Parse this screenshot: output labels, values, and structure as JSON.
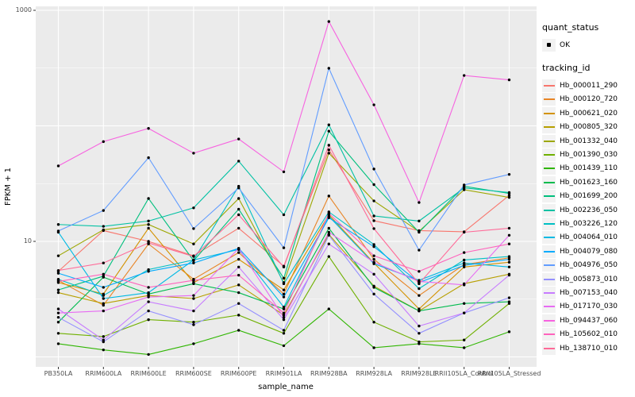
{
  "plot": {
    "y_axis": {
      "title": "FPKM + 1",
      "ticks": [
        {
          "label": "1000",
          "value": 1000
        },
        {
          "label": "10",
          "value": 10
        }
      ]
    },
    "x_axis": {
      "title": "sample_name"
    },
    "legend": {
      "quant_status_title": "quant_status",
      "ok_label": "OK",
      "tracking_id_title": "tracking_id"
    },
    "panel_background": "#EBEBEB",
    "gridline_color": "#FFFFFF",
    "tick_text_color": "#4D4D4D"
  },
  "chart_data": {
    "type": "line",
    "title": "",
    "xlabel": "sample_name",
    "ylabel": "FPKM + 1",
    "y_scale": "log10",
    "ylim": [
      1,
      1000
    ],
    "grid": true,
    "legend_position": "right",
    "point_marker": "black dot (quant_status = OK)",
    "categories": [
      "PB350LA",
      "RRIM600LA",
      "RRIM600LE",
      "RRIM600SE",
      "RRIM600PE",
      "RRIM901LA",
      "RRIM928BA",
      "RRIM928LA",
      "RRIM928LE",
      "RRII105LA_Control",
      "RRII105LA_Stressed"
    ],
    "series": [
      {
        "name": "Hb_000011_290",
        "color": "#F8766D",
        "values": [
          5.5,
          12.4,
          10.0,
          7.5,
          13.0,
          6.1,
          62,
          15.1,
          12.4,
          12.1,
          25.0
        ]
      },
      {
        "name": "Hb_000120_720",
        "color": "#E88526",
        "values": [
          4.6,
          2.8,
          9.5,
          4.7,
          8.0,
          3.5,
          24.7,
          7.0,
          3.4,
          6.3,
          7.2
        ]
      },
      {
        "name": "Hb_000621_020",
        "color": "#D39200",
        "values": [
          4.4,
          3.5,
          13.0,
          4.4,
          7.0,
          3.8,
          17.0,
          6.5,
          2.6,
          6.0,
          6.6
        ]
      },
      {
        "name": "Hb_000805_320",
        "color": "#B79F00",
        "values": [
          3.6,
          2.9,
          3.4,
          3.2,
          4.2,
          2.3,
          11.5,
          4.1,
          2.5,
          4.3,
          5.2
        ]
      },
      {
        "name": "Hb_001332_040",
        "color": "#9DA702",
        "values": [
          7.5,
          12.6,
          14.0,
          9.5,
          23.5,
          4.4,
          58,
          22.4,
          12.2,
          28.0,
          24.0
        ]
      },
      {
        "name": "Hb_001390_030",
        "color": "#6FB000",
        "values": [
          1.6,
          1.5,
          2.1,
          2.0,
          2.3,
          1.6,
          7.4,
          2.0,
          1.35,
          1.4,
          2.9
        ]
      },
      {
        "name": "Hb_001439_110",
        "color": "#2FB600",
        "values": [
          1.3,
          1.15,
          1.05,
          1.3,
          1.7,
          1.25,
          2.6,
          1.2,
          1.3,
          1.2,
          1.65
        ]
      },
      {
        "name": "Hb_001623_160",
        "color": "#00BB4E",
        "values": [
          2.0,
          4.9,
          3.5,
          4.3,
          3.6,
          2.6,
          13.0,
          4.0,
          2.5,
          2.9,
          3.0
        ]
      },
      {
        "name": "Hb_001699_200",
        "color": "#00BF7D",
        "values": [
          3.8,
          5.0,
          23.5,
          6.8,
          19.0,
          4.8,
          90,
          31.0,
          12.0,
          30.0,
          26.0
        ]
      },
      {
        "name": "Hb_002236_050",
        "color": "#00C1A3",
        "values": [
          14.0,
          13.5,
          15.0,
          19.5,
          49.5,
          17.0,
          102,
          16.6,
          15.0,
          29.0,
          26.5
        ]
      },
      {
        "name": "Hb_003226_120",
        "color": "#00BFC4",
        "values": [
          4.7,
          3.4,
          5.7,
          6.9,
          30.0,
          4.3,
          18.0,
          9.4,
          3.9,
          6.9,
          7.4
        ]
      },
      {
        "name": "Hb_004064_010",
        "color": "#00B9E3",
        "values": [
          12.0,
          3.2,
          3.6,
          6.9,
          8.5,
          2.7,
          16.5,
          6.4,
          4.6,
          6.5,
          6.0
        ]
      },
      {
        "name": "Hb_004079_080",
        "color": "#00ABFD",
        "values": [
          5.3,
          4.0,
          5.5,
          6.5,
          8.7,
          3.3,
          16.0,
          9.0,
          4.4,
          6.2,
          7.0
        ]
      },
      {
        "name": "Hb_004976_050",
        "color": "#619CFF",
        "values": [
          12.3,
          18.5,
          53.0,
          12.9,
          29.0,
          8.8,
          315,
          42.3,
          8.4,
          30.8,
          38.0
        ]
      },
      {
        "name": "Hb_005873_010",
        "color": "#9590FF",
        "values": [
          2.2,
          1.35,
          2.5,
          1.9,
          2.9,
          1.7,
          11.3,
          3.5,
          1.6,
          2.4,
          3.25
        ]
      },
      {
        "name": "Hb_007153_040",
        "color": "#C77CFF",
        "values": [
          2.6,
          1.4,
          3.0,
          2.5,
          6.0,
          2.1,
          9.5,
          5.2,
          1.85,
          2.4,
          5.1
        ]
      },
      {
        "name": "Hb_017170_030",
        "color": "#E76BF3",
        "values": [
          2.4,
          2.5,
          3.3,
          3.4,
          8.7,
          2.2,
          12.0,
          6.6,
          4.5,
          4.2,
          11.3
        ]
      },
      {
        "name": "Hb_094437_060",
        "color": "#F763E0",
        "values": [
          45,
          73,
          95,
          58,
          77,
          40,
          800,
          152,
          21.7,
          273,
          250
        ]
      },
      {
        "name": "Hb_105602_010",
        "color": "#FF62BC",
        "values": [
          4.5,
          5.2,
          4.0,
          4.6,
          5.1,
          2.4,
          17.5,
          7.5,
          5.5,
          8.0,
          9.5
        ]
      },
      {
        "name": "Hb_138710_010",
        "color": "#FF6A98",
        "values": [
          5.6,
          6.5,
          9.7,
          7.4,
          17.0,
          6.0,
          68,
          12.9,
          4.3,
          12.0,
          13.0
        ]
      }
    ]
  }
}
